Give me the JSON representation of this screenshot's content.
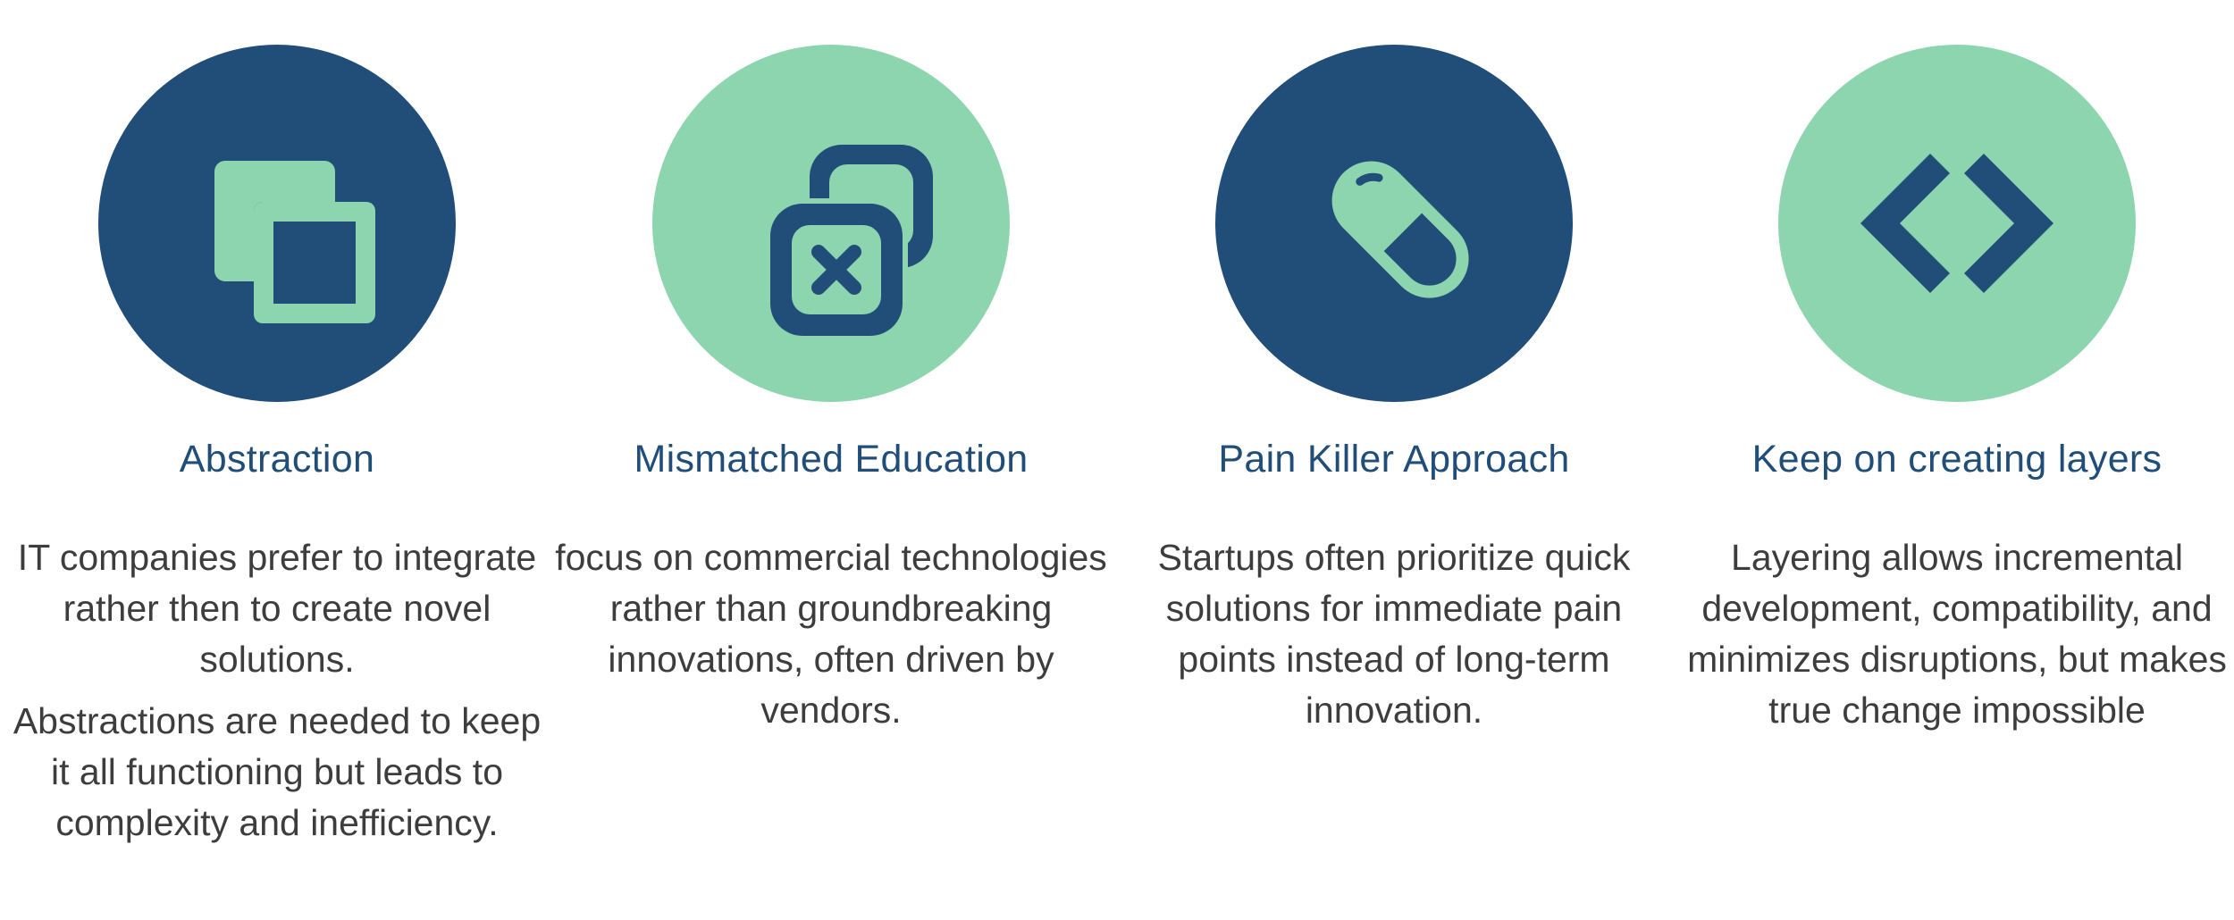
{
  "features": [
    {
      "title": "Abstraction",
      "paragraphs": [
        "IT companies prefer to integrate rather then to create novel solutions.",
        "Abstractions are needed to keep it all functioning but leads to complexity and inefficiency."
      ],
      "icon": "layers-squares-icon",
      "circle_color": "#204e79"
    },
    {
      "title": "Mismatched Education",
      "paragraphs": [
        "focus on commercial technologies rather than groundbreaking innovations, often driven by vendors."
      ],
      "icon": "stacked-boxes-x-icon",
      "circle_color": "#8dd5ae"
    },
    {
      "title": "Pain Killer Approach",
      "paragraphs": [
        "Startups often prioritize quick solutions for immediate pain points instead of long-term innovation."
      ],
      "icon": "pill-icon",
      "circle_color": "#204e79"
    },
    {
      "title": "Keep on creating layers",
      "paragraphs": [
        "Layering allows incremental development, compatibility, and minimizes disruptions, but makes true change impossible"
      ],
      "icon": "code-brackets-icon",
      "circle_color": "#8dd5ae"
    }
  ],
  "colors": {
    "navy": "#204e79",
    "mint": "#8dd5ae",
    "text": "#3d3d3d"
  }
}
